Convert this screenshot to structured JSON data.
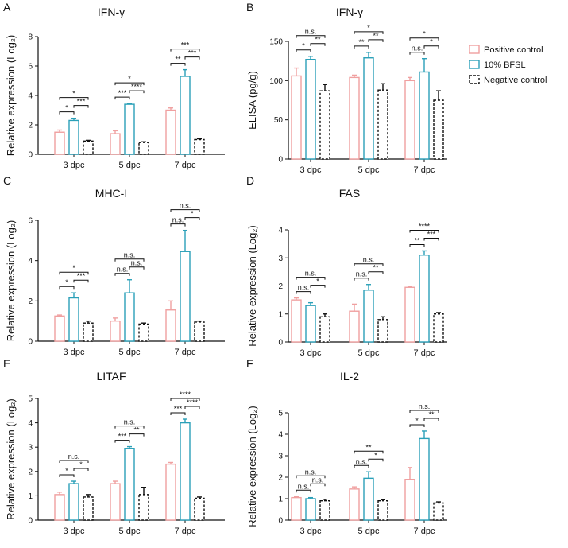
{
  "legend": {
    "series": [
      {
        "name": "Positive control",
        "color": "#f0a0a0",
        "dash": false
      },
      {
        "name": "10% BFSL",
        "color": "#2aa0b8",
        "dash": false
      },
      {
        "name": "Negative control",
        "color": "#111111",
        "dash": true
      }
    ]
  },
  "chart_data": [
    {
      "letter": "A",
      "type": "bar",
      "title": "IFN-γ",
      "ylabel": "Relative expression (Log₂)",
      "ylim": [
        0,
        8
      ],
      "yticks": [
        0,
        2,
        4,
        6,
        8
      ],
      "categories": [
        "3 dpc",
        "5 dpc",
        "7 dpc"
      ],
      "series": [
        {
          "name": "Positive control",
          "values": [
            1.5,
            1.4,
            3.0
          ],
          "errors": [
            0.15,
            0.2,
            0.15
          ]
        },
        {
          "name": "10% BFSL",
          "values": [
            2.3,
            3.4,
            5.3
          ],
          "errors": [
            0.15,
            0.05,
            0.45
          ]
        },
        {
          "name": "Negative control",
          "values": [
            0.9,
            0.8,
            1.0
          ],
          "errors": [
            0.05,
            0.05,
            0.05
          ]
        }
      ],
      "significance": [
        [
          {
            "pair": [
              0,
              2
            ],
            "label": "*"
          },
          {
            "pair": [
              0,
              1
            ],
            "label": "*"
          },
          {
            "pair": [
              1,
              2
            ],
            "label": "***"
          }
        ],
        [
          {
            "pair": [
              0,
              2
            ],
            "label": "*"
          },
          {
            "pair": [
              0,
              1
            ],
            "label": "***"
          },
          {
            "pair": [
              1,
              2
            ],
            "label": "****"
          }
        ],
        [
          {
            "pair": [
              0,
              2
            ],
            "label": "***"
          },
          {
            "pair": [
              0,
              1
            ],
            "label": "**"
          },
          {
            "pair": [
              1,
              2
            ],
            "label": "***"
          }
        ]
      ]
    },
    {
      "letter": "B",
      "type": "bar",
      "title": "IFN-γ",
      "ylabel": "ELISA (pg/g)",
      "ylim": [
        0,
        150
      ],
      "yticks": [
        0,
        50,
        100,
        150
      ],
      "categories": [
        "3 dpc",
        "5 dpc",
        "7 dpc"
      ],
      "series": [
        {
          "name": "Positive control",
          "values": [
            106,
            104,
            100
          ],
          "errors": [
            10,
            3,
            4
          ]
        },
        {
          "name": "10% BFSL",
          "values": [
            127,
            129,
            111
          ],
          "errors": [
            4,
            7,
            17
          ]
        },
        {
          "name": "Negative control",
          "values": [
            87,
            88,
            75
          ],
          "errors": [
            8,
            8,
            12
          ]
        }
      ],
      "significance": [
        [
          {
            "pair": [
              0,
              2
            ],
            "label": "n.s."
          },
          {
            "pair": [
              0,
              1
            ],
            "label": "*"
          },
          {
            "pair": [
              1,
              2
            ],
            "label": "**"
          }
        ],
        [
          {
            "pair": [
              0,
              2
            ],
            "label": "*"
          },
          {
            "pair": [
              0,
              1
            ],
            "label": "**"
          },
          {
            "pair": [
              1,
              2
            ],
            "label": "**"
          }
        ],
        [
          {
            "pair": [
              0,
              2
            ],
            "label": "*"
          },
          {
            "pair": [
              0,
              1
            ],
            "label": "n.s."
          },
          {
            "pair": [
              1,
              2
            ],
            "label": "*"
          }
        ]
      ]
    },
    {
      "letter": "C",
      "type": "bar",
      "title": "MHC-I",
      "ylabel": "Relative expression (Log₂)",
      "ylim": [
        0,
        6
      ],
      "yticks": [
        0,
        2,
        4,
        6
      ],
      "categories": [
        "3 dpc",
        "5 dpc",
        "7 dpc"
      ],
      "series": [
        {
          "name": "Positive control",
          "values": [
            1.25,
            1.0,
            1.55
          ],
          "errors": [
            0.05,
            0.15,
            0.45
          ]
        },
        {
          "name": "10% BFSL",
          "values": [
            2.15,
            2.4,
            4.45
          ],
          "errors": [
            0.25,
            0.65,
            1.05
          ]
        },
        {
          "name": "Negative control",
          "values": [
            0.9,
            0.85,
            0.95
          ],
          "errors": [
            0.1,
            0.05,
            0.05
          ]
        }
      ],
      "significance": [
        [
          {
            "pair": [
              0,
              2
            ],
            "label": "*"
          },
          {
            "pair": [
              0,
              1
            ],
            "label": "*"
          },
          {
            "pair": [
              1,
              2
            ],
            "label": "***"
          }
        ],
        [
          {
            "pair": [
              0,
              2
            ],
            "label": "n.s."
          },
          {
            "pair": [
              0,
              1
            ],
            "label": "n.s."
          },
          {
            "pair": [
              1,
              2
            ],
            "label": "n.s."
          }
        ],
        [
          {
            "pair": [
              0,
              2
            ],
            "label": "n.s."
          },
          {
            "pair": [
              0,
              1
            ],
            "label": "n.s."
          },
          {
            "pair": [
              1,
              2
            ],
            "label": "*"
          }
        ]
      ]
    },
    {
      "letter": "D",
      "type": "bar",
      "title": "FAS",
      "ylabel": "Relative expression (Log₂)",
      "ylim": [
        0,
        4
      ],
      "yticks": [
        0,
        1,
        2,
        3,
        4
      ],
      "categories": [
        "3 dpc",
        "5 dpc",
        "7 dpc"
      ],
      "series": [
        {
          "name": "Positive control",
          "values": [
            1.5,
            1.1,
            1.95
          ],
          "errors": [
            0.07,
            0.25,
            0.03
          ]
        },
        {
          "name": "10% BFSL",
          "values": [
            1.3,
            1.85,
            3.1
          ],
          "errors": [
            0.1,
            0.2,
            0.15
          ]
        },
        {
          "name": "Negative control",
          "values": [
            0.9,
            0.8,
            1.0
          ],
          "errors": [
            0.1,
            0.1,
            0.05
          ]
        }
      ],
      "significance": [
        [
          {
            "pair": [
              0,
              2
            ],
            "label": "n.s."
          },
          {
            "pair": [
              0,
              1
            ],
            "label": "n.s."
          },
          {
            "pair": [
              1,
              2
            ],
            "label": "*"
          }
        ],
        [
          {
            "pair": [
              0,
              2
            ],
            "label": "n.s."
          },
          {
            "pair": [
              0,
              1
            ],
            "label": "n.s."
          },
          {
            "pair": [
              1,
              2
            ],
            "label": "**"
          }
        ],
        [
          {
            "pair": [
              0,
              2
            ],
            "label": "****"
          },
          {
            "pair": [
              0,
              1
            ],
            "label": "**"
          },
          {
            "pair": [
              1,
              2
            ],
            "label": "***"
          }
        ]
      ]
    },
    {
      "letter": "E",
      "type": "bar",
      "title": "LITAF",
      "ylabel": "Relative expression (Log₂)",
      "ylim": [
        0,
        5
      ],
      "yticks": [
        0,
        1,
        2,
        3,
        4,
        5
      ],
      "categories": [
        "3 dpc",
        "5 dpc",
        "7 dpc"
      ],
      "series": [
        {
          "name": "Positive control",
          "values": [
            1.05,
            1.5,
            2.3
          ],
          "errors": [
            0.1,
            0.1,
            0.07
          ]
        },
        {
          "name": "10% BFSL",
          "values": [
            1.5,
            2.95,
            4.0
          ],
          "errors": [
            0.1,
            0.07,
            0.15
          ]
        },
        {
          "name": "Negative control",
          "values": [
            0.95,
            1.05,
            0.9
          ],
          "errors": [
            0.1,
            0.3,
            0.05
          ]
        }
      ],
      "significance": [
        [
          {
            "pair": [
              0,
              2
            ],
            "label": "n.s."
          },
          {
            "pair": [
              0,
              1
            ],
            "label": "*"
          },
          {
            "pair": [
              1,
              2
            ],
            "label": "*"
          }
        ],
        [
          {
            "pair": [
              0,
              2
            ],
            "label": "n.s."
          },
          {
            "pair": [
              0,
              1
            ],
            "label": "***"
          },
          {
            "pair": [
              1,
              2
            ],
            "label": "**"
          }
        ],
        [
          {
            "pair": [
              0,
              2
            ],
            "label": "****"
          },
          {
            "pair": [
              0,
              1
            ],
            "label": "***"
          },
          {
            "pair": [
              1,
              2
            ],
            "label": "****"
          }
        ]
      ]
    },
    {
      "letter": "F",
      "type": "bar",
      "title": "IL-2",
      "ylabel": "Relative expression (Log₂)",
      "ylim": [
        0,
        5
      ],
      "yticks": [
        0,
        1,
        2,
        3,
        4,
        5
      ],
      "categories": [
        "3 dpc",
        "5 dpc",
        "7 dpc"
      ],
      "series": [
        {
          "name": "Positive control",
          "values": [
            1.05,
            1.45,
            1.9
          ],
          "errors": [
            0.05,
            0.1,
            0.55
          ]
        },
        {
          "name": "10% BFSL",
          "values": [
            1.0,
            1.95,
            3.8
          ],
          "errors": [
            0.05,
            0.3,
            0.35
          ]
        },
        {
          "name": "Negative control",
          "values": [
            0.9,
            0.9,
            0.8
          ],
          "errors": [
            0.07,
            0.05,
            0.05
          ]
        }
      ],
      "significance": [
        [
          {
            "pair": [
              0,
              2
            ],
            "label": "n.s."
          },
          {
            "pair": [
              0,
              1
            ],
            "label": "n.s."
          },
          {
            "pair": [
              1,
              2
            ],
            "label": "n.s."
          }
        ],
        [
          {
            "pair": [
              0,
              2
            ],
            "label": "**"
          },
          {
            "pair": [
              0,
              1
            ],
            "label": "n.s."
          },
          {
            "pair": [
              1,
              2
            ],
            "label": "*"
          }
        ],
        [
          {
            "pair": [
              0,
              2
            ],
            "label": "n.s."
          },
          {
            "pair": [
              0,
              1
            ],
            "label": "*"
          },
          {
            "pair": [
              1,
              2
            ],
            "label": "**"
          }
        ]
      ]
    }
  ]
}
